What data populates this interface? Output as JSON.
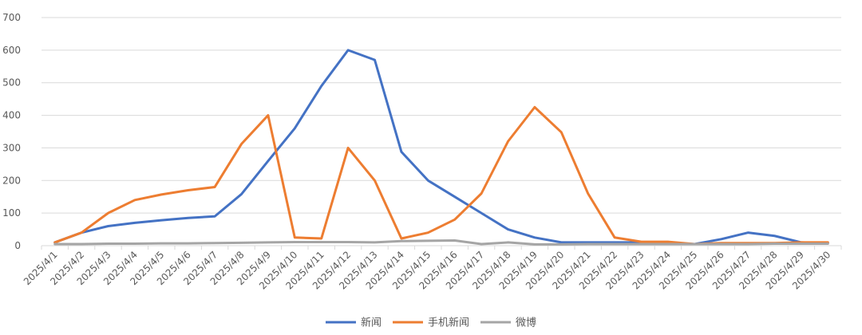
{
  "chart_data": {
    "type": "line",
    "title": "",
    "xlabel": "",
    "ylabel": "",
    "ylim": [
      0,
      700
    ],
    "y_ticks": [
      0,
      100,
      200,
      300,
      400,
      500,
      600,
      700
    ],
    "grid": true,
    "legend_position": "bottom",
    "categories": [
      "2025/4/1",
      "2025/4/2",
      "2025/4/3",
      "2025/4/4",
      "2025/4/5",
      "2025/4/6",
      "2025/4/7",
      "2025/4/8",
      "2025/4/9",
      "2025/4/10",
      "2025/4/11",
      "2025/4/12",
      "2025/4/13",
      "2025/4/14",
      "2025/4/15",
      "2025/4/16",
      "2025/4/17",
      "2025/4/18",
      "2025/4/19",
      "2025/4/20",
      "2025/4/21",
      "2025/4/22",
      "2025/4/23",
      "2025/4/24",
      "2025/4/25",
      "2025/4/26",
      "2025/4/27",
      "2025/4/28",
      "2025/4/29",
      "2025/4/30"
    ],
    "series": [
      {
        "name": "新闻",
        "color": "#4472c4",
        "values": [
          10,
          40,
          60,
          70,
          78,
          85,
          90,
          158,
          260,
          360,
          490,
          600,
          570,
          288,
          200,
          150,
          100,
          50,
          25,
          10,
          10,
          10,
          10,
          8,
          5,
          20,
          40,
          30,
          10,
          8
        ]
      },
      {
        "name": "手机新闻",
        "color": "#ed7d31",
        "values": [
          10,
          40,
          100,
          140,
          157,
          170,
          180,
          312,
          400,
          25,
          22,
          300,
          200,
          22,
          40,
          80,
          160,
          320,
          425,
          348,
          160,
          25,
          12,
          12,
          5,
          8,
          8,
          8,
          10,
          10
        ]
      },
      {
        "name": "微博",
        "color": "#a5a5a5",
        "values": [
          5,
          5,
          6,
          6,
          7,
          7,
          8,
          9,
          10,
          11,
          11,
          11,
          10,
          14,
          15,
          16,
          5,
          10,
          4,
          4,
          5,
          5,
          5,
          5,
          5,
          5,
          5,
          6,
          6,
          6
        ]
      }
    ]
  }
}
